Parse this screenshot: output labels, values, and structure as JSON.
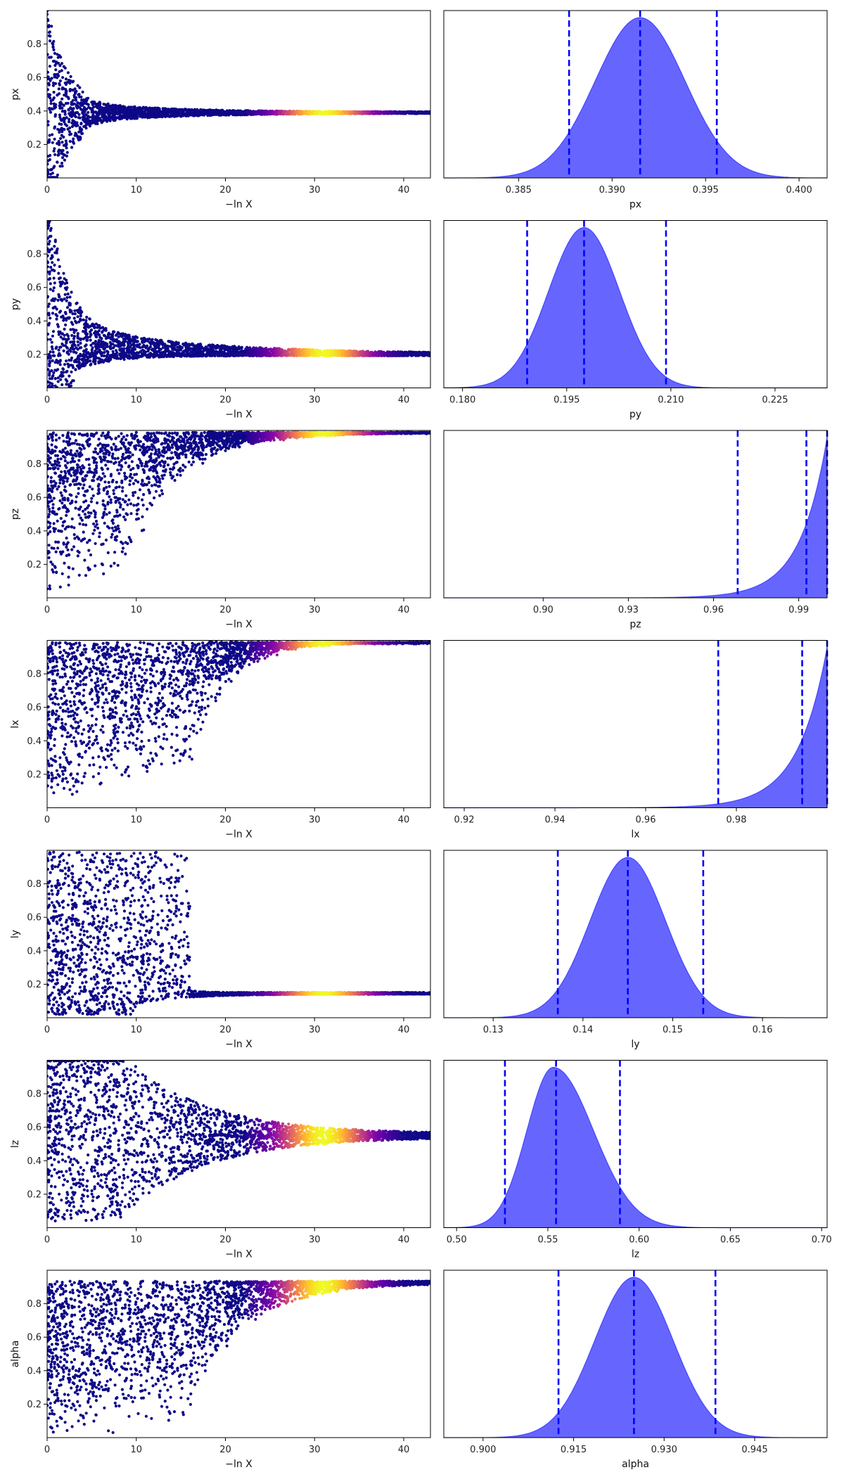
{
  "chart_data": [
    {
      "type": "scatter",
      "xlabel": "−ln X",
      "ylabel": "px",
      "xlim": [
        0,
        43
      ],
      "ylim": [
        0,
        1
      ],
      "xticks": [
        0,
        10,
        20,
        30,
        40
      ],
      "yticks": [
        0.2,
        0.4,
        0.6,
        0.8
      ],
      "converge_value": 0.39,
      "colormap": "plasma",
      "point_color": "#0d0887"
    },
    {
      "type": "area",
      "xlabel": "px",
      "xlim": [
        0.381,
        0.4015
      ],
      "xticks": [
        "0.385",
        "0.390",
        "0.395",
        "0.400"
      ],
      "density": {
        "kind": "gaussian",
        "mode": 0.3915,
        "sigma": 0.0024
      },
      "quantile_lines": [
        0.3877,
        0.3915,
        0.3956
      ],
      "fill_color": "#6666ff",
      "line_color": "#0000ff"
    },
    {
      "type": "scatter",
      "xlabel": "−ln X",
      "ylabel": "py",
      "xlim": [
        0,
        43
      ],
      "ylim": [
        0,
        1
      ],
      "xticks": [
        0,
        10,
        20,
        30,
        40
      ],
      "yticks": [
        0.2,
        0.4,
        0.6,
        0.8
      ],
      "converge_value": 0.198,
      "colormap": "plasma",
      "point_color": "#0d0887"
    },
    {
      "type": "area",
      "xlabel": "py",
      "xlim": [
        0.1773,
        0.2325
      ],
      "xticks": [
        "0.180",
        "0.195",
        "0.210",
        "0.225"
      ],
      "density": {
        "kind": "gaussian",
        "mode": 0.1975,
        "sigma": 0.0051
      },
      "quantile_lines": [
        0.1893,
        0.1975,
        0.2093
      ],
      "fill_color": "#6666ff",
      "line_color": "#0000ff"
    },
    {
      "type": "scatter",
      "xlabel": "−ln X",
      "ylabel": "pz",
      "xlim": [
        0,
        43
      ],
      "ylim": [
        0,
        1
      ],
      "xticks": [
        0,
        10,
        20,
        30,
        40
      ],
      "yticks": [
        0.2,
        0.4,
        0.6,
        0.8
      ],
      "converge_value": 0.985,
      "colormap": "plasma",
      "point_color": "#0d0887"
    },
    {
      "type": "area",
      "xlabel": "pz",
      "xlim": [
        0.865,
        1.0
      ],
      "xticks": [
        "0.90",
        "0.93",
        "0.96",
        "0.99"
      ],
      "density": {
        "kind": "edge",
        "mode": 1.0,
        "scale": 0.0095
      },
      "quantile_lines": [
        0.9685,
        0.9927,
        1.0
      ],
      "fill_color": "#6666ff",
      "line_color": "#0000ff"
    },
    {
      "type": "scatter",
      "xlabel": "−ln X",
      "ylabel": "lx",
      "xlim": [
        0,
        43
      ],
      "ylim": [
        0,
        1
      ],
      "xticks": [
        0,
        10,
        20,
        30,
        40
      ],
      "yticks": [
        0.2,
        0.4,
        0.6,
        0.8
      ],
      "converge_value": 0.985,
      "colormap": "plasma",
      "point_color": "#0d0887"
    },
    {
      "type": "area",
      "xlabel": "lx",
      "xlim": [
        0.9155,
        1.0
      ],
      "xticks": [
        "0.92",
        "0.94",
        "0.96",
        "0.98"
      ],
      "density": {
        "kind": "edge",
        "mode": 1.0,
        "scale": 0.0065
      },
      "quantile_lines": [
        0.976,
        0.9945,
        1.0
      ],
      "fill_color": "#6666ff",
      "line_color": "#0000ff"
    },
    {
      "type": "scatter",
      "xlabel": "−ln X",
      "ylabel": "ly",
      "xlim": [
        0,
        43
      ],
      "ylim": [
        0,
        1
      ],
      "xticks": [
        0,
        10,
        20,
        30,
        40
      ],
      "yticks": [
        0.2,
        0.4,
        0.6,
        0.8
      ],
      "converge_value": 0.145,
      "colormap": "plasma",
      "point_color": "#0d0887"
    },
    {
      "type": "area",
      "xlabel": "ly",
      "xlim": [
        0.1245,
        0.1672
      ],
      "xticks": [
        "0.13",
        "0.14",
        "0.15",
        "0.16"
      ],
      "density": {
        "kind": "gaussian",
        "mode": 0.145,
        "sigma": 0.0042
      },
      "quantile_lines": [
        0.1372,
        0.145,
        0.1534
      ],
      "fill_color": "#6666ff",
      "line_color": "#0000ff"
    },
    {
      "type": "scatter",
      "xlabel": "−ln X",
      "ylabel": "lz",
      "xlim": [
        0,
        43
      ],
      "ylim": [
        0,
        1
      ],
      "xticks": [
        0,
        10,
        20,
        30,
        40
      ],
      "yticks": [
        0.2,
        0.4,
        0.6,
        0.8
      ],
      "converge_value": 0.55,
      "colormap": "plasma",
      "point_color": "#0d0887"
    },
    {
      "type": "area",
      "xlabel": "lz",
      "xlim": [
        0.493,
        0.703
      ],
      "xticks": [
        "0.50",
        "0.55",
        "0.60",
        "0.65",
        "0.70"
      ],
      "density": {
        "kind": "skew",
        "mode": 0.553,
        "sigma_left": 0.0145,
        "sigma_right": 0.022
      },
      "quantile_lines": [
        0.5265,
        0.5545,
        0.5895
      ],
      "fill_color": "#6666ff",
      "line_color": "#0000ff"
    },
    {
      "type": "scatter",
      "xlabel": "−ln X",
      "ylabel": "alpha",
      "xlim": [
        0,
        43
      ],
      "ylim": [
        0,
        1
      ],
      "xticks": [
        0,
        10,
        20,
        30,
        40
      ],
      "yticks": [
        0.2,
        0.4,
        0.6,
        0.8
      ],
      "converge_value": 0.925,
      "colormap": "plasma",
      "point_color": "#0d0887"
    },
    {
      "type": "area",
      "xlabel": "alpha",
      "xlim": [
        0.8935,
        0.957
      ],
      "xticks": [
        "0.900",
        "0.915",
        "0.930",
        "0.945"
      ],
      "density": {
        "kind": "gaussian",
        "mode": 0.925,
        "sigma": 0.0065
      },
      "quantile_lines": [
        0.9125,
        0.925,
        0.9385
      ],
      "fill_color": "#6666ff",
      "line_color": "#0000ff"
    }
  ]
}
